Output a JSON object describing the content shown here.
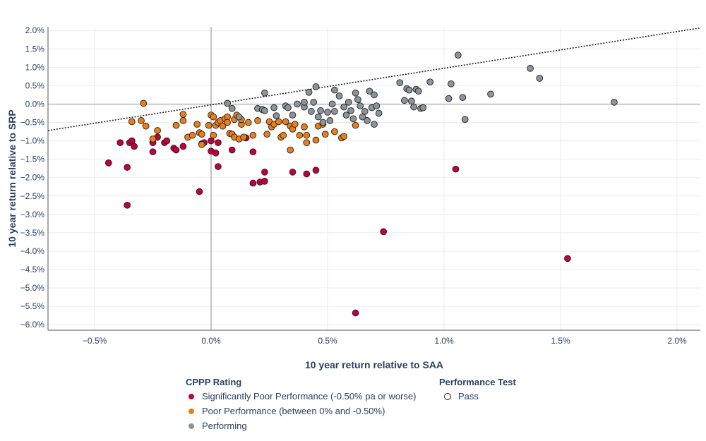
{
  "colors": {
    "significant": "#c0003c",
    "poor": "#e87e1c",
    "performing": "#8c9399",
    "marker_edge": "#1f1f1f",
    "grid": "#ebebeb",
    "zeroline": "#8a8a8a",
    "axis": "#555555"
  },
  "chart_data": {
    "type": "scatter",
    "xlabel": "10 year return relative to SAA",
    "ylabel": "10 year return relative to SRP",
    "x_unit": "%",
    "y_unit": "%",
    "xlim": [
      -0.7,
      2.1
    ],
    "ylim": [
      -6.15,
      2.1
    ],
    "x_ticks": [
      -0.5,
      0,
      0.5,
      1.0,
      1.5,
      2.0
    ],
    "x_tick_labels": [
      "−0.5%",
      "0.0%",
      "0.5%",
      "1.0%",
      "1.5%",
      "2.0%"
    ],
    "y_ticks": [
      2.0,
      1.5,
      1.0,
      0.5,
      0.0,
      -0.5,
      -1.0,
      -1.5,
      -2.0,
      -2.5,
      -3.0,
      -3.5,
      -4.0,
      -4.5,
      -5.0,
      -5.5,
      -6.0
    ],
    "y_tick_labels": [
      "2.0%",
      "1.5%",
      "1.0%",
      "0.5%",
      "0.0%",
      "−0.5%",
      "−1.0%",
      "−1.5%",
      "−2.0%",
      "−2.5%",
      "−3.0%",
      "−3.5%",
      "−4.0%",
      "−4.5%",
      "−5.0%",
      "−5.5%",
      "−6.0%"
    ],
    "grid": true,
    "reference_line": {
      "style": "dotted",
      "points": [
        [
          -0.7,
          -0.72
        ],
        [
          2.1,
          2.07
        ]
      ]
    },
    "series": [
      {
        "name": "Significantly Poor Performance (-0.50% pa or worse)",
        "color_key": "significant",
        "points": [
          [
            -0.44,
            -1.6
          ],
          [
            -0.39,
            -1.05
          ],
          [
            -0.36,
            -1.72
          ],
          [
            -0.35,
            -1.05
          ],
          [
            -0.34,
            -1.0
          ],
          [
            -0.33,
            -1.15
          ],
          [
            -0.36,
            -2.75
          ],
          [
            -0.25,
            -1.05
          ],
          [
            -0.25,
            -1.3
          ],
          [
            -0.23,
            -0.9
          ],
          [
            -0.2,
            -1.05
          ],
          [
            -0.19,
            -1.0
          ],
          [
            -0.16,
            -1.2
          ],
          [
            -0.15,
            -1.25
          ],
          [
            -0.12,
            -1.15
          ],
          [
            -0.05,
            -2.38
          ],
          [
            -0.04,
            -1.08
          ],
          [
            -0.03,
            -1.05
          ],
          [
            0.0,
            -1.28
          ],
          [
            0.0,
            -1.0
          ],
          [
            0.02,
            -1.33
          ],
          [
            0.03,
            -1.05
          ],
          [
            0.03,
            -1.7
          ],
          [
            0.09,
            -1.25
          ],
          [
            0.15,
            -0.92
          ],
          [
            0.18,
            -1.3
          ],
          [
            0.18,
            -2.15
          ],
          [
            0.21,
            -2.12
          ],
          [
            0.23,
            -2.1
          ],
          [
            0.23,
            -1.85
          ],
          [
            0.35,
            -1.85
          ],
          [
            0.41,
            -1.9
          ],
          [
            0.45,
            -1.8
          ],
          [
            0.74,
            -3.47
          ],
          [
            0.62,
            -5.68
          ],
          [
            1.05,
            -1.77
          ],
          [
            1.53,
            -4.2
          ]
        ]
      },
      {
        "name": "Poor Performance (between 0% and -0.50%)",
        "color_key": "poor",
        "points": [
          [
            -0.29,
            0.02
          ],
          [
            -0.34,
            -0.48
          ],
          [
            -0.3,
            -0.45
          ],
          [
            -0.28,
            -0.6
          ],
          [
            -0.25,
            -0.95
          ],
          [
            -0.23,
            -0.72
          ],
          [
            -0.15,
            -0.58
          ],
          [
            -0.12,
            -0.28
          ],
          [
            -0.12,
            -0.45
          ],
          [
            -0.1,
            -0.9
          ],
          [
            -0.08,
            -0.85
          ],
          [
            -0.06,
            -0.55
          ],
          [
            -0.05,
            -0.78
          ],
          [
            -0.04,
            -0.82
          ],
          [
            -0.04,
            -1.1
          ],
          [
            -0.01,
            -0.58
          ],
          [
            0.0,
            -0.3
          ],
          [
            0.01,
            -0.35
          ],
          [
            0.01,
            -0.85
          ],
          [
            0.02,
            -0.58
          ],
          [
            0.03,
            -0.5
          ],
          [
            0.04,
            -0.45
          ],
          [
            0.05,
            -0.6
          ],
          [
            0.06,
            -0.4
          ],
          [
            0.07,
            -0.35
          ],
          [
            0.07,
            -0.5
          ],
          [
            0.08,
            -0.8
          ],
          [
            0.09,
            -0.82
          ],
          [
            0.1,
            -0.9
          ],
          [
            0.1,
            -0.42
          ],
          [
            0.11,
            -0.3
          ],
          [
            0.12,
            -0.95
          ],
          [
            0.13,
            -0.55
          ],
          [
            0.13,
            -0.42
          ],
          [
            0.14,
            -0.9
          ],
          [
            0.16,
            -0.5
          ],
          [
            0.18,
            -0.85
          ],
          [
            0.2,
            -0.45
          ],
          [
            0.22,
            -0.15
          ],
          [
            0.24,
            -0.82
          ],
          [
            0.25,
            -0.48
          ],
          [
            0.26,
            -0.62
          ],
          [
            0.27,
            -0.55
          ],
          [
            0.29,
            -0.48
          ],
          [
            0.3,
            -0.9
          ],
          [
            0.31,
            -0.85
          ],
          [
            0.32,
            -0.48
          ],
          [
            0.34,
            -0.6
          ],
          [
            0.34,
            -1.25
          ],
          [
            0.35,
            -0.68
          ],
          [
            0.36,
            -0.55
          ],
          [
            0.38,
            -0.85
          ],
          [
            0.4,
            -0.62
          ],
          [
            0.41,
            -0.85
          ],
          [
            0.41,
            -1.05
          ],
          [
            0.45,
            -0.98
          ],
          [
            0.46,
            -0.6
          ],
          [
            0.48,
            -0.55
          ],
          [
            0.49,
            -0.82
          ],
          [
            0.53,
            -0.75
          ],
          [
            0.56,
            -0.92
          ],
          [
            0.57,
            -0.88
          ],
          [
            0.62,
            -0.58
          ]
        ]
      },
      {
        "name": "Performing",
        "color_key": "performing",
        "points": [
          [
            0.07,
            0.02
          ],
          [
            0.09,
            -0.12
          ],
          [
            0.12,
            -0.35
          ],
          [
            0.2,
            -0.12
          ],
          [
            0.22,
            -0.15
          ],
          [
            0.23,
            -0.18
          ],
          [
            0.23,
            0.3
          ],
          [
            0.27,
            -0.1
          ],
          [
            0.28,
            -0.32
          ],
          [
            0.32,
            -0.05
          ],
          [
            0.33,
            -0.1
          ],
          [
            0.35,
            -0.3
          ],
          [
            0.37,
            0.0
          ],
          [
            0.4,
            -0.08
          ],
          [
            0.4,
            0.05
          ],
          [
            0.42,
            0.32
          ],
          [
            0.43,
            -0.2
          ],
          [
            0.44,
            0.05
          ],
          [
            0.45,
            0.47
          ],
          [
            0.46,
            -0.35
          ],
          [
            0.47,
            -0.18
          ],
          [
            0.48,
            -0.5
          ],
          [
            0.5,
            -0.22
          ],
          [
            0.51,
            -0.45
          ],
          [
            0.52,
            0.0
          ],
          [
            0.53,
            0.38
          ],
          [
            0.53,
            -0.2
          ],
          [
            0.55,
            0.22
          ],
          [
            0.57,
            -0.08
          ],
          [
            0.58,
            -0.3
          ],
          [
            0.59,
            0.05
          ],
          [
            0.6,
            -0.18
          ],
          [
            0.61,
            -0.4
          ],
          [
            0.62,
            0.3
          ],
          [
            0.63,
            0.12
          ],
          [
            0.64,
            -0.05
          ],
          [
            0.65,
            -0.35
          ],
          [
            0.66,
            -0.2
          ],
          [
            0.67,
            -0.45
          ],
          [
            0.68,
            0.35
          ],
          [
            0.69,
            -0.1
          ],
          [
            0.7,
            0.25
          ],
          [
            0.7,
            -0.55
          ],
          [
            0.71,
            -0.05
          ],
          [
            0.72,
            -0.25
          ],
          [
            0.81,
            0.58
          ],
          [
            0.83,
            0.1
          ],
          [
            0.84,
            0.42
          ],
          [
            0.85,
            0.38
          ],
          [
            0.86,
            0.08
          ],
          [
            0.87,
            -0.08
          ],
          [
            0.88,
            0.4
          ],
          [
            0.89,
            0.35
          ],
          [
            0.9,
            -0.12
          ],
          [
            0.91,
            -0.1
          ],
          [
            0.94,
            0.6
          ],
          [
            1.02,
            0.15
          ],
          [
            1.03,
            0.55
          ],
          [
            1.06,
            1.33
          ],
          [
            1.08,
            0.18
          ],
          [
            1.09,
            -0.42
          ],
          [
            1.2,
            0.27
          ],
          [
            1.37,
            0.97
          ],
          [
            1.41,
            0.7
          ],
          [
            1.73,
            0.05
          ]
        ]
      }
    ]
  },
  "legend": {
    "rating_title": "CPPP Rating",
    "items": [
      {
        "label": "Significantly Poor Performance (-0.50% pa or worse)",
        "color_key": "significant"
      },
      {
        "label": "Poor Performance (between 0% and -0.50%)",
        "color_key": "poor"
      },
      {
        "label": "Performing",
        "color_key": "performing"
      }
    ],
    "test_title": "Performance Test",
    "test_items": [
      {
        "label": "Pass",
        "symbol": "open-circle"
      }
    ]
  }
}
